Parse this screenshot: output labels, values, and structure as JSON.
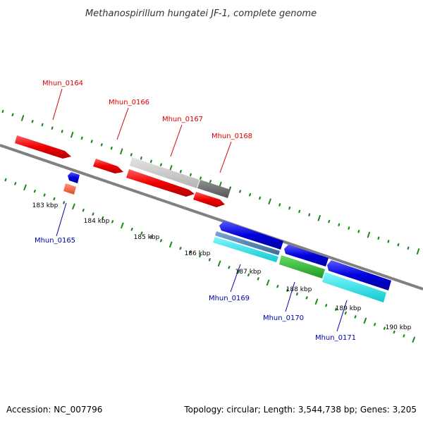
{
  "header": {
    "title": "Methanospirillum hungatei JF-1, complete genome"
  },
  "footer": {
    "accession": "Accession: NC_007796",
    "summary": "Topology: circular; Length: 3,544,738 bp; Genes: 3,205"
  },
  "scale": {
    "ticks": [
      {
        "label": "183 kbp"
      },
      {
        "label": "184 kbp"
      },
      {
        "label": "185 kbp"
      },
      {
        "label": "186 kbp"
      },
      {
        "label": "187 kbp"
      },
      {
        "label": "188 kbp"
      },
      {
        "label": "189 kbp"
      },
      {
        "label": "190 kbp"
      }
    ]
  },
  "genes": {
    "forward_labels": [
      "Mhun_0164",
      "Mhun_0166",
      "Mhun_0167",
      "Mhun_0168"
    ],
    "reverse_labels": [
      "Mhun_0165",
      "Mhun_0169",
      "Mhun_0170",
      "Mhun_0171"
    ]
  },
  "colors": {
    "backbone": "#808080",
    "tick_green": "#1a8a1a",
    "forward_red": "#ee0000",
    "label_red": "#dd0000",
    "label_blue": "#0000aa",
    "gray_light": "#c8c8c8",
    "gray_dark": "#707070",
    "blue": "#0000dd",
    "steel_blue": "#4a7fb0",
    "salmon": "#ff6a4a",
    "green": "#33bb33",
    "cyan": "#22e0e8"
  }
}
